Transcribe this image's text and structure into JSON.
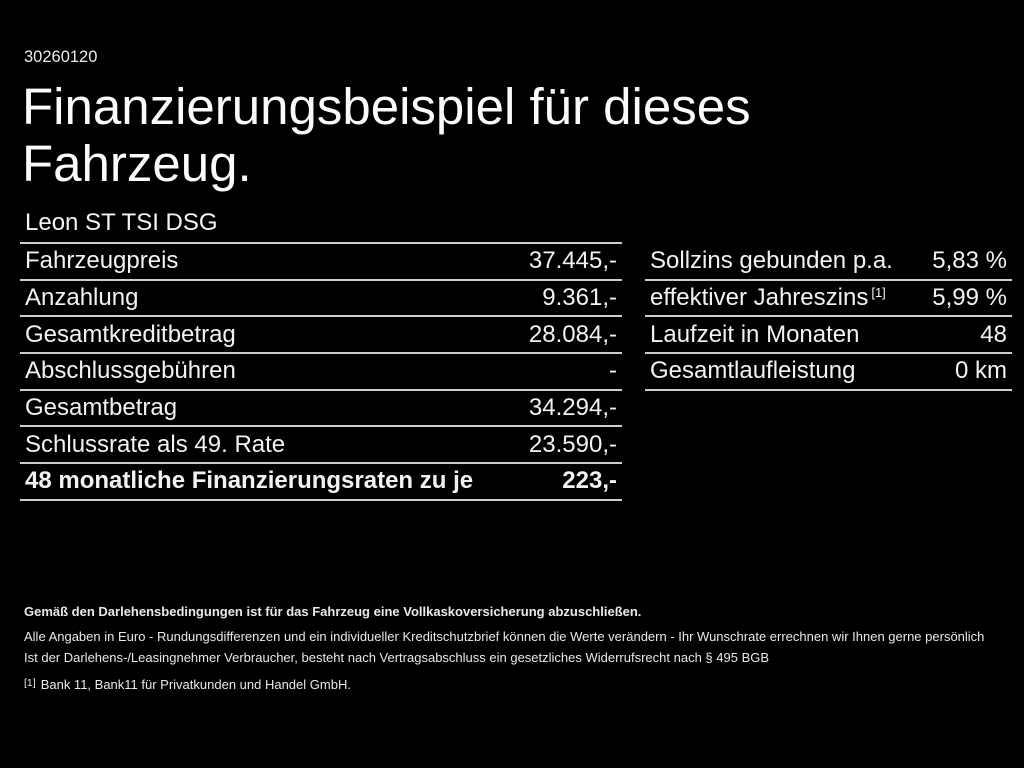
{
  "page": {
    "background_color": "#000000",
    "text_color": "#f2f2f2",
    "divider_color": "#cccccc"
  },
  "header": {
    "document_id": "30260120",
    "title": "Finanzierungsbeispiel für dieses Fahrzeug.",
    "vehicle_model": "Leon ST TSI DSG"
  },
  "finance_table": {
    "rows": [
      {
        "label": "Fahrzeugpreis",
        "value": "37.445,-"
      },
      {
        "label": "Anzahlung",
        "value": "9.361,-"
      },
      {
        "label": "Gesamtkreditbetrag",
        "value": "28.084,-"
      },
      {
        "label": "Abschlussgebühren",
        "value": "-"
      },
      {
        "label": "Gesamtbetrag",
        "value": "34.294,-"
      },
      {
        "label": "Schlussrate als 49. Rate",
        "value": "23.590,-"
      },
      {
        "label": "48 monatliche Finanzierungsraten zu je",
        "value": "223,-"
      }
    ]
  },
  "conditions_table": {
    "rows": [
      {
        "label": "Sollzins gebunden p.a.",
        "sup": "",
        "value": "5,83 %"
      },
      {
        "label": "effektiver Jahreszins",
        "sup": "[1]",
        "value": "5,99 %"
      },
      {
        "label": "Laufzeit in Monaten",
        "sup": "",
        "value": "48"
      },
      {
        "label": "Gesamtlaufleistung",
        "sup": "",
        "value": "0 km"
      }
    ]
  },
  "footer": {
    "insurance_note": "Gemäß den Darlehensbedingungen ist für das Fahrzeug eine Vollkaskoversicherung abzuschließen.",
    "disclaimer_1": "Alle Angaben in Euro - Rundungsdifferenzen und ein individueller Kreditschutzbrief können die Werte verändern - Ihr Wunschrate errechnen wir Ihnen gerne persönlich",
    "disclaimer_2": "Ist der Darlehens-/Leasingnehmer Verbraucher, besteht nach Vertragsabschluss ein gesetzliches Widerrufsrecht nach § 495 BGB",
    "footnote_marker": "[1]",
    "footnote_text": "Bank 11, Bank11 für Privatkunden und Handel GmbH."
  }
}
